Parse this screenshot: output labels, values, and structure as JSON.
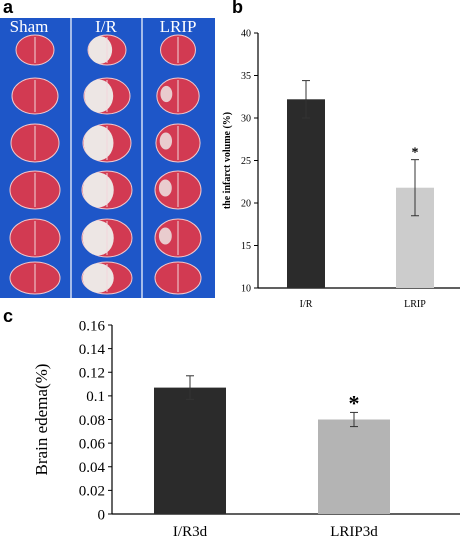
{
  "panels": {
    "a": {
      "letter": "a",
      "columns": [
        "Sham",
        "I/R",
        "LRIP"
      ],
      "colors": {
        "background": "#1e56c8",
        "tissue": "#d23a52",
        "pale": "#ede6e4",
        "label": "#ffffff"
      }
    },
    "b": {
      "letter": "b"
    },
    "c": {
      "letter": "c"
    }
  },
  "chart_data": [
    {
      "type": "bar",
      "categories": [
        "I/R",
        "LRIP"
      ],
      "values": [
        32.2,
        21.8
      ],
      "error": [
        2.2,
        3.3
      ],
      "annotations": [
        "",
        "*"
      ],
      "title": "",
      "xlabel": "",
      "ylabel": "the infarct volume (%)",
      "ylim": [
        10,
        40
      ],
      "yticks": [
        "10",
        "15",
        "20",
        "25",
        "30",
        "35",
        "40"
      ],
      "grid": false,
      "colors": [
        "#2b2b2b",
        "#cccccc"
      ]
    },
    {
      "type": "bar",
      "categories": [
        "I/R3d",
        "LRIP3d"
      ],
      "values": [
        0.107,
        0.08
      ],
      "error": [
        0.01,
        0.006
      ],
      "annotations": [
        "",
        "*"
      ],
      "title": "",
      "xlabel": "",
      "ylabel": "Brain edema(%)",
      "ylim": [
        0,
        0.16
      ],
      "yticks": [
        "0",
        "0.02",
        "0.04",
        "0.06",
        "0.08",
        "0.1",
        "0.12",
        "0.14",
        "0.16"
      ],
      "grid": false,
      "colors": [
        "#2b2b2b",
        "#b4b4b4"
      ]
    }
  ]
}
